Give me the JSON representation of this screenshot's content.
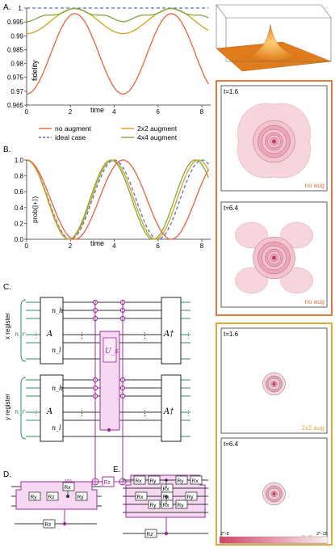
{
  "panels": {
    "A": "A.",
    "B": "B.",
    "C": "C.",
    "D": "D.",
    "E": "E."
  },
  "colors": {
    "no_aug": "#e8623a",
    "aug2": "#d4a21c",
    "aug4": "#7fa83a",
    "ideal": "#4b6fd6",
    "circuit": "#9b2c9b",
    "wire_green": "#2f8f5a",
    "frame_red": "#e07a3e",
    "frame_gold": "#e0a83e"
  },
  "chart_data": [
    {
      "type": "line",
      "title": "",
      "xlabel": "time",
      "ylabel": "fidelity",
      "xlim": [
        0,
        8.4
      ],
      "ylim": [
        0.965,
        1.0
      ],
      "xticks": [
        "0",
        "2",
        "4",
        "6",
        "8"
      ],
      "yticks": [
        "0.965",
        "0.97",
        "0.975",
        "0.98",
        "0.985",
        "0.99",
        "0.995",
        "1."
      ],
      "legend": [
        "no augment",
        "2x2 augment",
        "ideal case",
        "4x4 augment"
      ]
    },
    {
      "type": "line",
      "title": "",
      "xlabel": "time",
      "ylabel": "prob(|+⟩)",
      "xlim": [
        0,
        8.4
      ],
      "ylim": [
        0,
        1.0
      ],
      "xticks": [
        "0",
        "2",
        "4",
        "6",
        "8"
      ],
      "yticks": [
        "0.0",
        "0.2",
        "0.4",
        "0.6",
        "0.8",
        "1.0"
      ]
    }
  ],
  "circuit": {
    "x_register": "x register",
    "y_register": "y register",
    "n_r": "n_r",
    "n_h": "n_h",
    "n_l": "n_l",
    "A": "A",
    "A_dag": "A†",
    "U_s": "U_s",
    "ket0_left": "|0⟩",
    "ket0_right": "|0⟩",
    "Rz": "Rz",
    "Rx": "Rx",
    "Ry": "Ry",
    "dots": "⋮"
  },
  "heatmaps": [
    {
      "time": "t=1.6",
      "label": "no aug"
    },
    {
      "time": "t=6.4",
      "label": "no aug"
    },
    {
      "time": "t=1.6",
      "label": "2x2 aug"
    },
    {
      "time": "t=6.4",
      "label": "2x2 aug"
    }
  ],
  "colorbar": {
    "min": "2^-8",
    "max": "2^-15"
  }
}
